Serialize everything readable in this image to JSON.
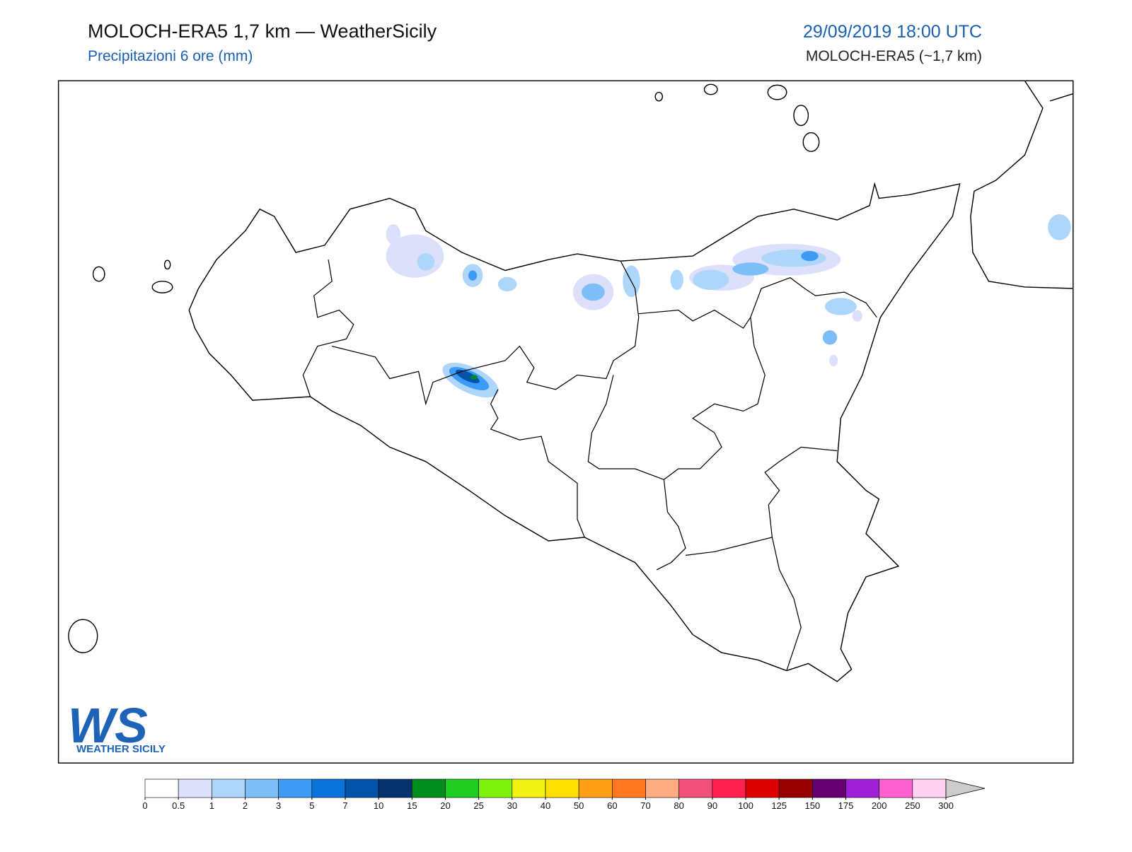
{
  "header": {
    "title": "MOLOCH-ERA5 1,7 km — WeatherSicily",
    "subtitle": "Precipitazioni 6 ore (mm)",
    "date": "29/09/2019 18:00 UTC",
    "model": "MOLOCH-ERA5 (~1,7 km)"
  },
  "logo": {
    "letters": "WS",
    "name": "WEATHER SICILY"
  },
  "colorbar": {
    "ticks": [
      0,
      0.5,
      1,
      2,
      3,
      5,
      7,
      10,
      15,
      20,
      25,
      30,
      40,
      50,
      60,
      70,
      80,
      90,
      100,
      125,
      150,
      175,
      200,
      250,
      300
    ],
    "colors": [
      "#ffffff",
      "#dde0fa",
      "#aed6fa",
      "#7dbef8",
      "#3d9af5",
      "#0b74dc",
      "#0453ab",
      "#06336e",
      "#008c1e",
      "#1fcc1f",
      "#7ef20c",
      "#f2f215",
      "#ffe000",
      "#ff9f16",
      "#ff7820",
      "#ffaa80",
      "#f0507a",
      "#ff2050",
      "#dd0000",
      "#960000",
      "#640070",
      "#a020d8",
      "#ff60d0",
      "#ffd0f0"
    ],
    "extend_color": "#cccccc"
  }
}
